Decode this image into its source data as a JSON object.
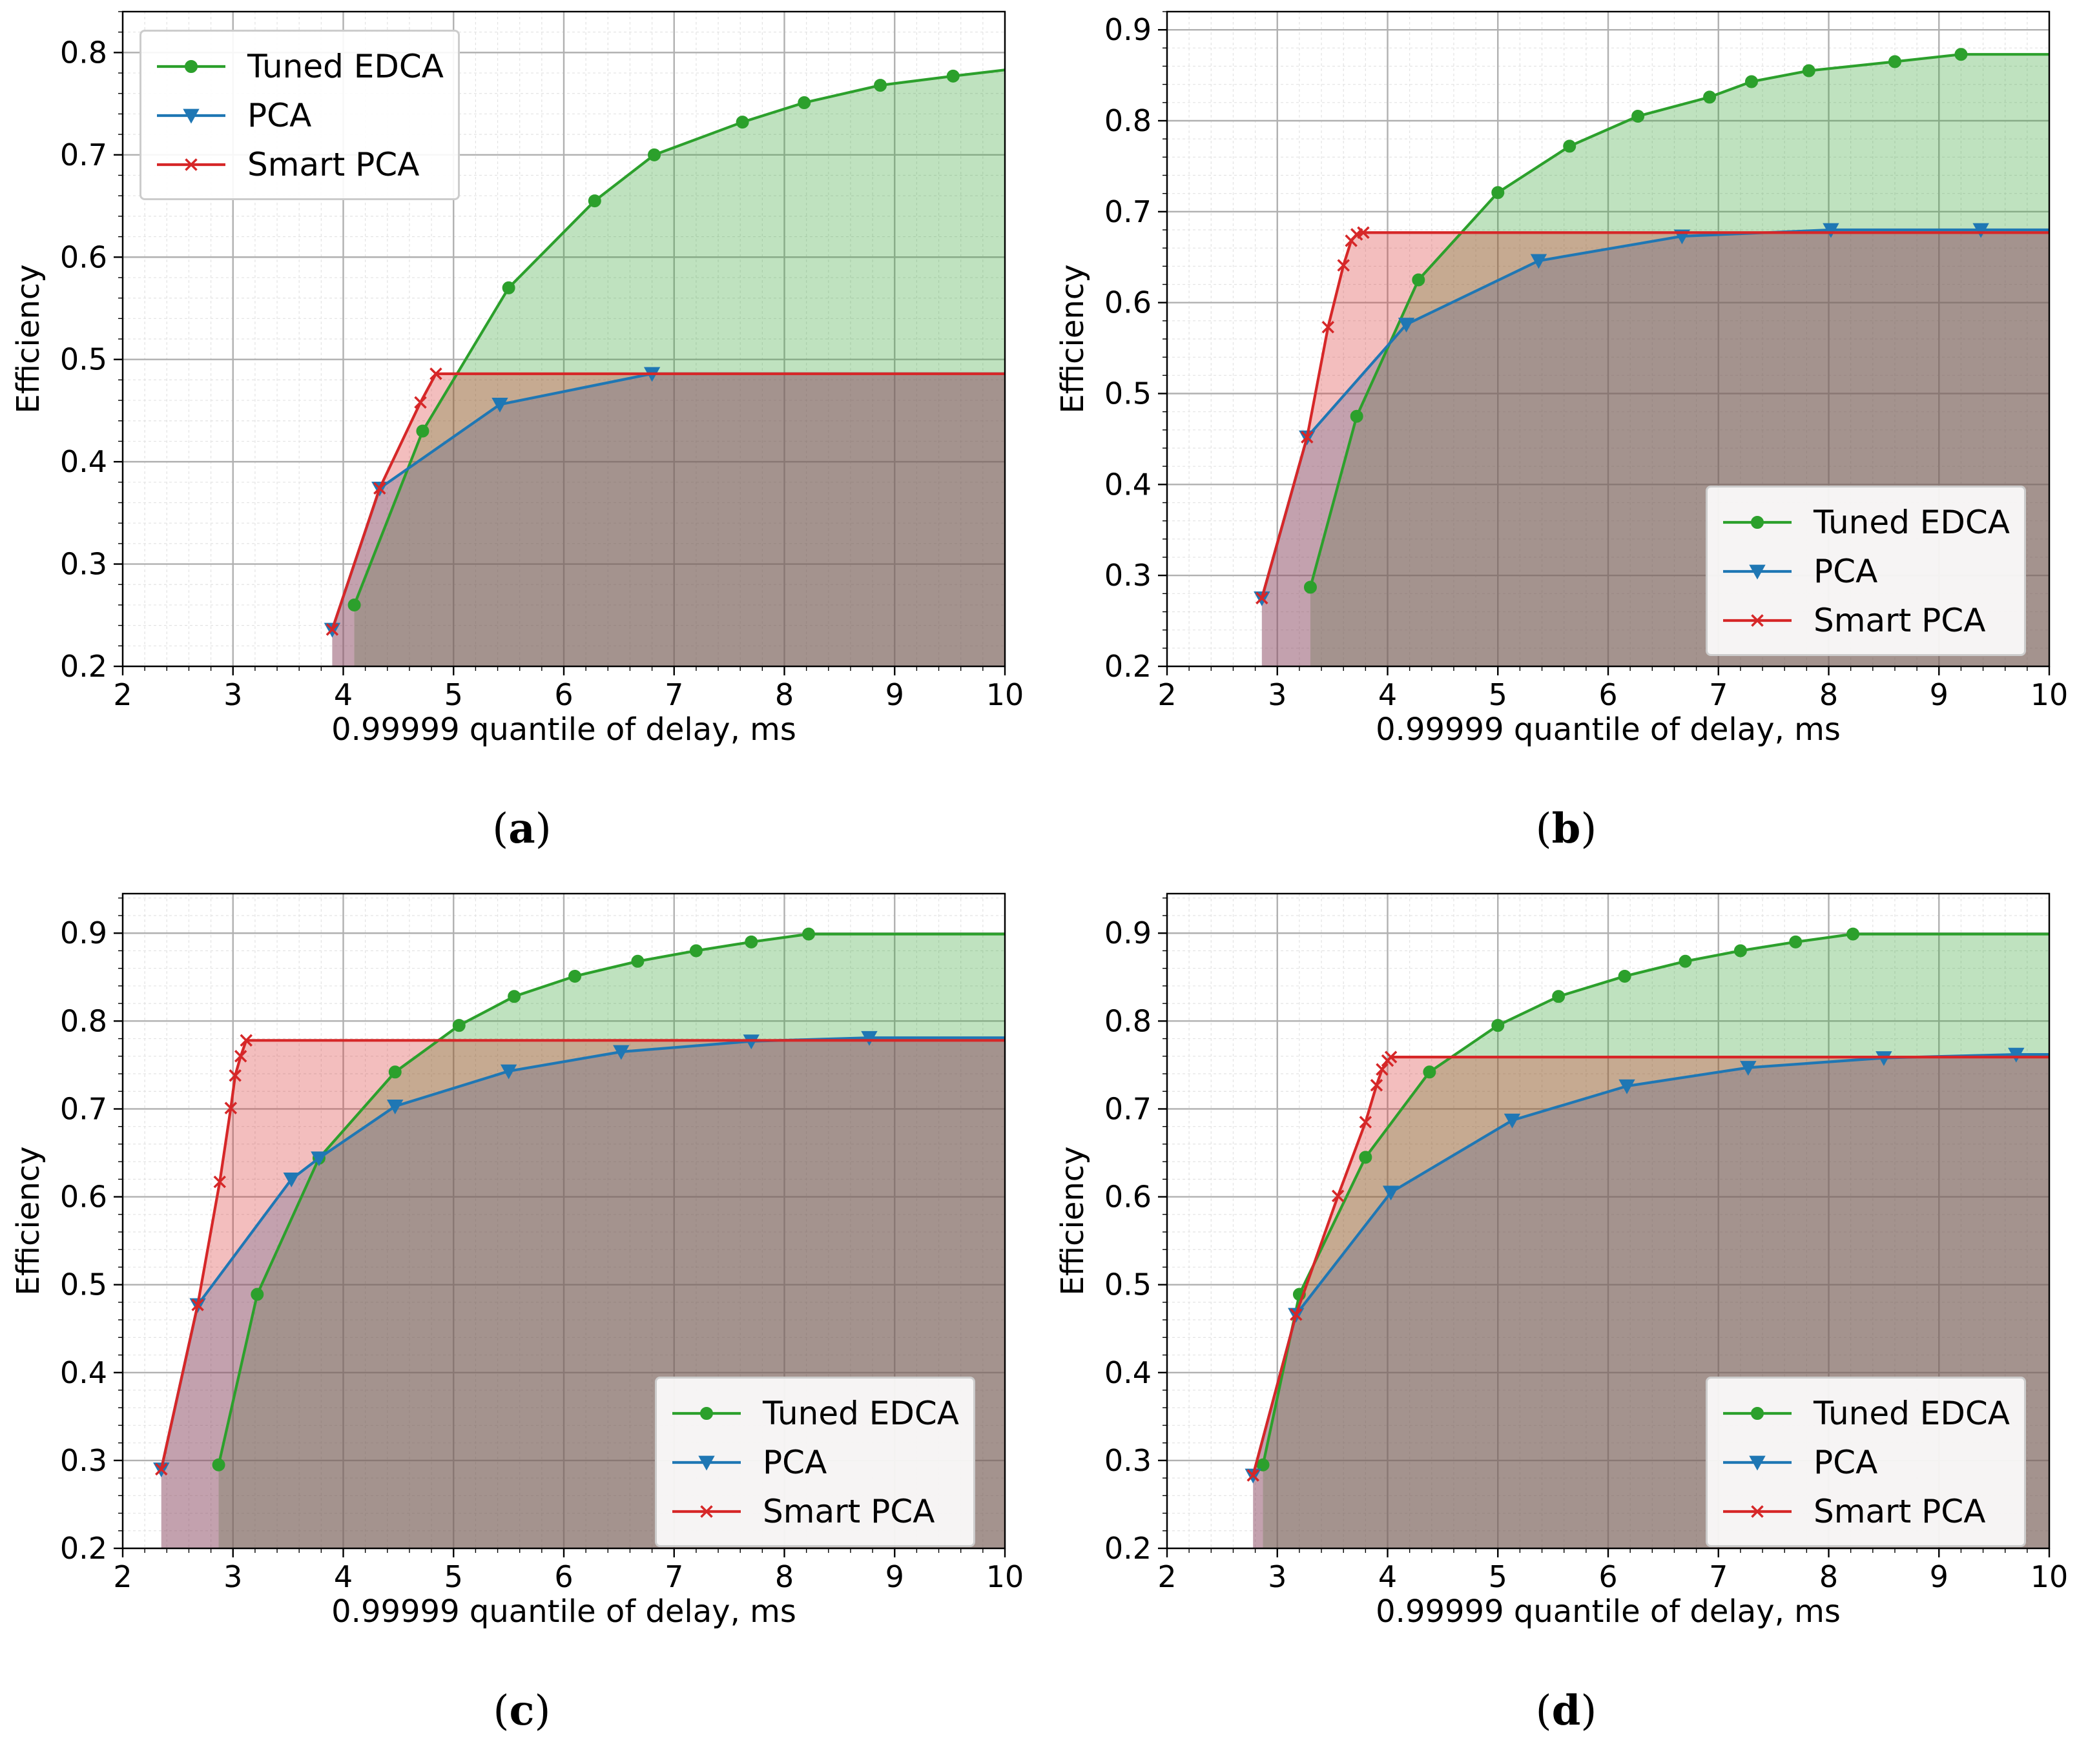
{
  "colors": {
    "tuned": "#2ca02c",
    "pca": "#1f77b4",
    "smart": "#d62728"
  },
  "legend": {
    "tuned": "Tuned EDCA",
    "pca": "PCA",
    "smart": "Smart PCA"
  },
  "chart_data": [
    {
      "type": "line",
      "panel": "a",
      "caption": "a",
      "xlabel": "0.99999 quantile of delay, ms",
      "ylabel": "Efficiency",
      "xlim": [
        2,
        10
      ],
      "ylim": [
        0.2,
        0.84
      ],
      "xticks": [
        2,
        3,
        4,
        5,
        6,
        7,
        8,
        9,
        10
      ],
      "yticks": [
        0.2,
        0.3,
        0.4,
        0.5,
        0.6,
        0.7,
        0.8
      ],
      "legend_position": "upper left",
      "series": [
        {
          "name": "Tuned EDCA",
          "x": [
            4.1,
            4.72,
            5.5,
            6.28,
            6.82,
            7.62,
            8.18,
            8.87,
            9.53,
            10.0
          ],
          "y": [
            0.26,
            0.43,
            0.57,
            0.655,
            0.7,
            0.732,
            0.751,
            0.768,
            0.777,
            0.783
          ]
        },
        {
          "name": "PCA",
          "x": [
            3.9,
            4.33,
            5.42,
            6.8,
            10.0
          ],
          "y": [
            0.236,
            0.374,
            0.456,
            0.486,
            0.486
          ]
        },
        {
          "name": "Smart PCA",
          "x": [
            3.9,
            4.33,
            4.7,
            4.84,
            10.0
          ],
          "y": [
            0.236,
            0.374,
            0.458,
            0.486,
            0.486
          ]
        }
      ]
    },
    {
      "type": "line",
      "panel": "b",
      "caption": "b",
      "xlabel": "0.99999 quantile of delay, ms",
      "ylabel": "Efficiency",
      "xlim": [
        2,
        10
      ],
      "ylim": [
        0.2,
        0.92
      ],
      "xticks": [
        2,
        3,
        4,
        5,
        6,
        7,
        8,
        9,
        10
      ],
      "yticks": [
        0.2,
        0.3,
        0.4,
        0.5,
        0.6,
        0.7,
        0.8,
        0.9
      ],
      "legend_position": "lower right",
      "series": [
        {
          "name": "Tuned EDCA",
          "x": [
            3.3,
            3.72,
            4.28,
            5.0,
            5.65,
            6.27,
            6.92,
            7.3,
            7.82,
            8.6,
            9.2,
            10.0
          ],
          "y": [
            0.287,
            0.475,
            0.625,
            0.721,
            0.772,
            0.805,
            0.826,
            0.843,
            0.855,
            0.865,
            0.873,
            0.873
          ]
        },
        {
          "name": "PCA",
          "x": [
            2.86,
            3.27,
            4.17,
            5.37,
            6.67,
            8.02,
            9.38,
            10.0
          ],
          "y": [
            0.275,
            0.452,
            0.576,
            0.646,
            0.673,
            0.68,
            0.68,
            0.68
          ]
        },
        {
          "name": "Smart PCA",
          "x": [
            2.86,
            3.27,
            3.46,
            3.6,
            3.67,
            3.72,
            3.78,
            10.0
          ],
          "y": [
            0.275,
            0.452,
            0.573,
            0.641,
            0.668,
            0.675,
            0.677,
            0.677
          ]
        }
      ]
    },
    {
      "type": "line",
      "panel": "c",
      "caption": "c",
      "xlabel": "0.99999 quantile of delay, ms",
      "ylabel": "Efficiency",
      "xlim": [
        2,
        10
      ],
      "ylim": [
        0.2,
        0.945
      ],
      "xticks": [
        2,
        3,
        4,
        5,
        6,
        7,
        8,
        9,
        10
      ],
      "yticks": [
        0.2,
        0.3,
        0.4,
        0.5,
        0.6,
        0.7,
        0.8,
        0.9
      ],
      "legend_position": "lower right",
      "series": [
        {
          "name": "Tuned EDCA",
          "x": [
            2.87,
            3.22,
            3.78,
            4.47,
            5.05,
            5.55,
            6.1,
            6.67,
            7.2,
            7.7,
            8.22,
            10.0
          ],
          "y": [
            0.295,
            0.489,
            0.644,
            0.742,
            0.795,
            0.828,
            0.851,
            0.868,
            0.88,
            0.89,
            0.899,
            0.899
          ]
        },
        {
          "name": "PCA",
          "x": [
            2.35,
            2.68,
            3.53,
            3.78,
            4.47,
            5.5,
            6.52,
            7.7,
            8.77,
            10.0
          ],
          "y": [
            0.29,
            0.477,
            0.62,
            0.644,
            0.703,
            0.743,
            0.765,
            0.777,
            0.781,
            0.781
          ]
        },
        {
          "name": "Smart PCA",
          "x": [
            2.35,
            2.68,
            2.88,
            2.98,
            3.02,
            3.07,
            3.12,
            10.0
          ],
          "y": [
            0.29,
            0.477,
            0.617,
            0.701,
            0.738,
            0.76,
            0.778,
            0.778
          ]
        }
      ]
    },
    {
      "type": "line",
      "panel": "d",
      "caption": "d",
      "xlabel": "0.99999 quantile of delay, ms",
      "ylabel": "Efficiency",
      "xlim": [
        2,
        10
      ],
      "ylim": [
        0.2,
        0.945
      ],
      "xticks": [
        2,
        3,
        4,
        5,
        6,
        7,
        8,
        9,
        10
      ],
      "yticks": [
        0.2,
        0.3,
        0.4,
        0.5,
        0.6,
        0.7,
        0.8,
        0.9
      ],
      "legend_position": "lower right",
      "series": [
        {
          "name": "Tuned EDCA",
          "x": [
            2.87,
            3.2,
            3.8,
            4.38,
            5.0,
            5.55,
            6.15,
            6.7,
            7.2,
            7.7,
            8.22,
            10.0
          ],
          "y": [
            0.295,
            0.489,
            0.645,
            0.742,
            0.795,
            0.828,
            0.851,
            0.868,
            0.88,
            0.89,
            0.899,
            0.899
          ]
        },
        {
          "name": "PCA",
          "x": [
            2.78,
            3.17,
            4.03,
            5.13,
            6.17,
            7.27,
            8.5,
            9.7,
            10.0
          ],
          "y": [
            0.283,
            0.466,
            0.605,
            0.687,
            0.726,
            0.747,
            0.758,
            0.762,
            0.762
          ]
        },
        {
          "name": "Smart PCA",
          "x": [
            2.78,
            3.17,
            3.55,
            3.8,
            3.9,
            3.95,
            4.0,
            4.03,
            10.0
          ],
          "y": [
            0.283,
            0.466,
            0.601,
            0.685,
            0.727,
            0.745,
            0.755,
            0.759,
            0.759
          ]
        }
      ]
    }
  ]
}
